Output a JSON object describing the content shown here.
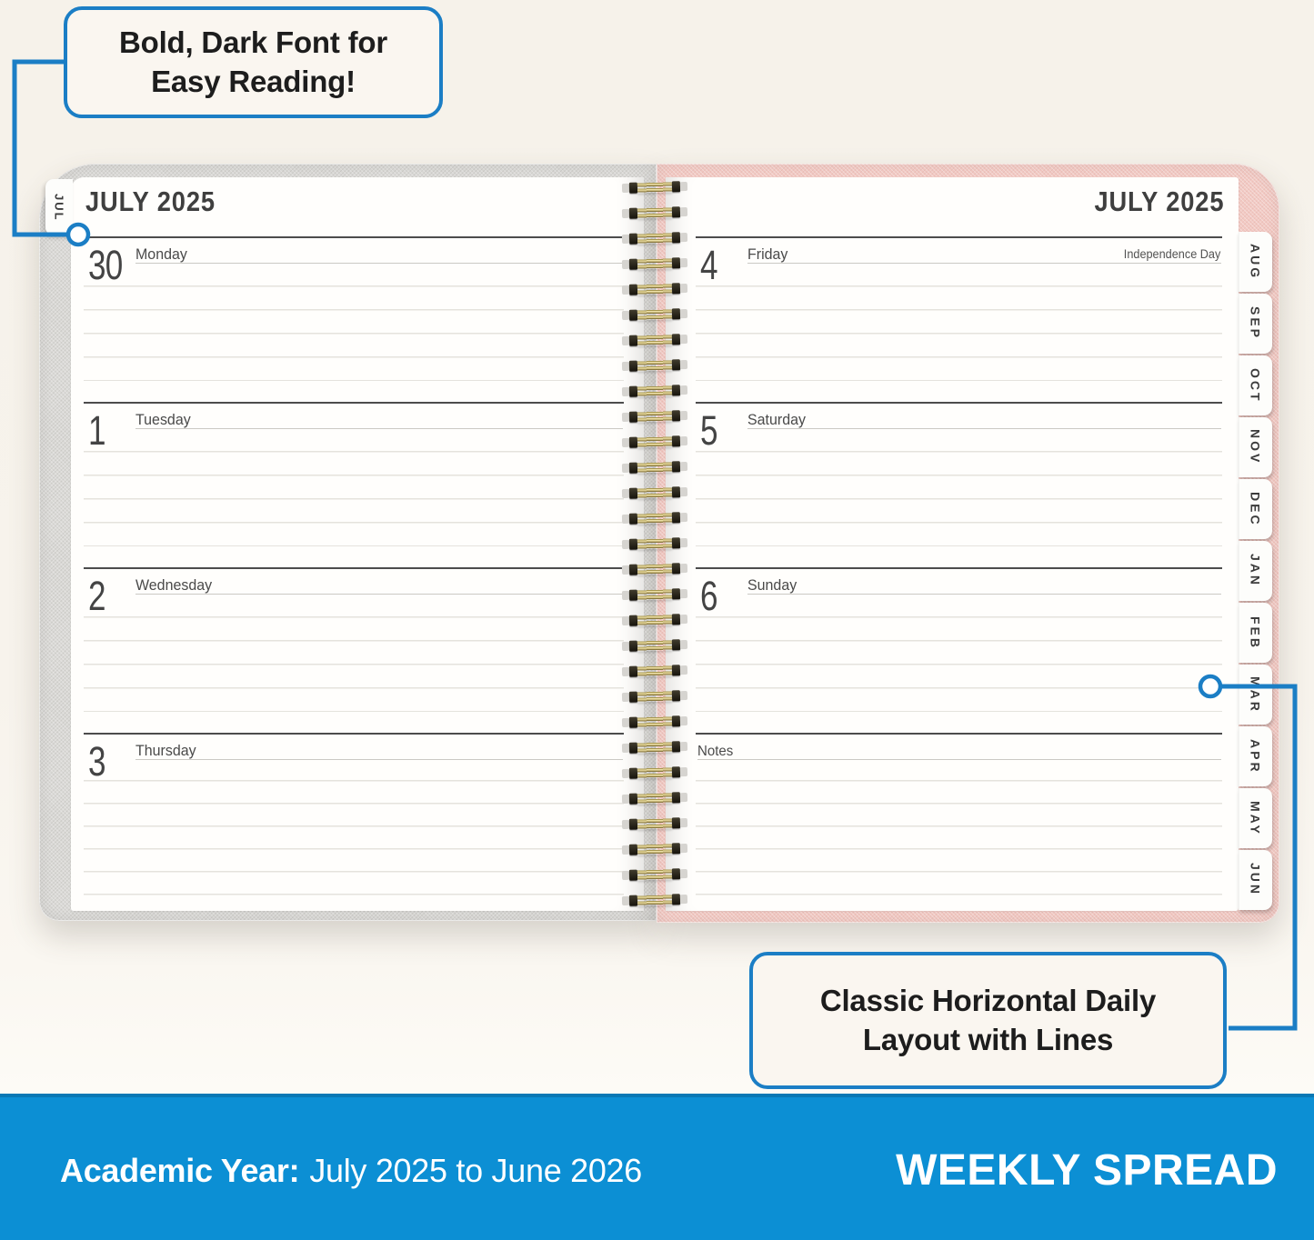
{
  "callouts": {
    "top": {
      "line1": "Bold, Dark Font for",
      "line2": "Easy Reading!"
    },
    "bottom": {
      "line1": "Classic Horizontal Daily",
      "line2": "Layout with Lines"
    }
  },
  "left_page": {
    "tab": "JUL",
    "header": "JULY 2025",
    "days": [
      {
        "num": "30",
        "name": "Monday"
      },
      {
        "num": "1",
        "name": "Tuesday"
      },
      {
        "num": "2",
        "name": "Wednesday"
      },
      {
        "num": "3",
        "name": "Thursday"
      }
    ]
  },
  "right_page": {
    "header": "JULY 2025",
    "days": [
      {
        "num": "4",
        "name": "Friday",
        "note": "Independence Day"
      },
      {
        "num": "5",
        "name": "Saturday"
      },
      {
        "num": "6",
        "name": "Sunday"
      },
      {
        "name": "Notes"
      }
    ],
    "month_tabs": [
      "AUG",
      "SEP",
      "OCT",
      "NOV",
      "DEC",
      "JAN",
      "FEB",
      "MAR",
      "APR",
      "MAY",
      "JUN"
    ]
  },
  "banner": {
    "left_bold": "Academic Year:",
    "left_rest": "July 2025 to June 2026",
    "right": "WEEKLY SPREAD"
  },
  "colors": {
    "accent_blue": "#1b7ec5",
    "banner_blue": "#0c8fd4",
    "cream": "#f7f3ec",
    "page_white": "#fffefc",
    "cover_gray": "#dad9d6",
    "cover_pink": "#f2c9c3",
    "ink": "#3f3f3f",
    "rule_dark": "#4c4c4c",
    "rule_mid": "#cbc9c4",
    "rule_light": "#e5e3dd",
    "gold": "#c9b97c"
  }
}
